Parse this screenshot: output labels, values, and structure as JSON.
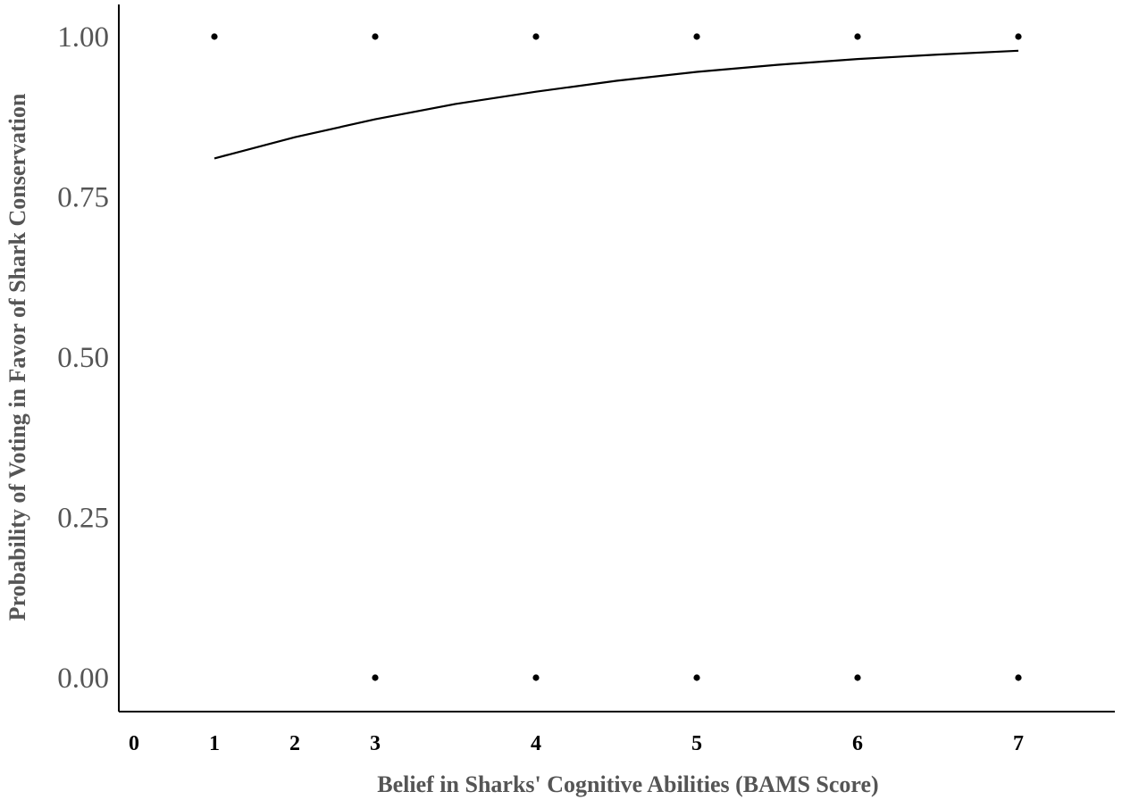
{
  "chart_data": {
    "type": "scatter",
    "title": "",
    "xlabel": "Belief in Sharks' Cognitive Abilities (BAMS Score)",
    "ylabel": "Probability of Voting in Favor of Shark Conservation",
    "y_ticks": [
      "0.00",
      "0.25",
      "0.50",
      "0.75",
      "1.00"
    ],
    "x_ticks": [
      {
        "label": "0",
        "value": 0.5
      },
      {
        "label": "1",
        "value": 1.0
      },
      {
        "label": "2",
        "value": 1.5
      },
      {
        "label": "3",
        "value": 2.0
      },
      {
        "label": "4",
        "value": 3.0
      },
      {
        "label": "5",
        "value": 4.0
      },
      {
        "label": "6",
        "value": 5.0
      },
      {
        "label": "7",
        "value": 6.0
      }
    ],
    "xlim": [
      0.6,
      6.6
    ],
    "ylim": [
      -0.05,
      1.05
    ],
    "grid": false,
    "series": [
      {
        "kind": "points",
        "x": [
          1.0,
          2.0,
          3.0,
          4.0,
          5.0,
          6.0,
          2.0,
          3.0,
          4.0,
          5.0,
          6.0
        ],
        "y": [
          1,
          1,
          1,
          1,
          1,
          1,
          0,
          0,
          0,
          0,
          0
        ]
      },
      {
        "kind": "line",
        "x": [
          1.0,
          1.5,
          2.0,
          2.5,
          3.0,
          3.5,
          4.0,
          4.5,
          5.0,
          5.5,
          6.0
        ],
        "y": [
          0.81,
          0.843,
          0.871,
          0.895,
          0.914,
          0.931,
          0.945,
          0.956,
          0.965,
          0.972,
          0.978
        ]
      }
    ],
    "colors": {
      "points": "#000000",
      "line": "#000000",
      "axis": "#000000",
      "tick_label": "#555555",
      "x_tick_label": "#000000"
    }
  }
}
